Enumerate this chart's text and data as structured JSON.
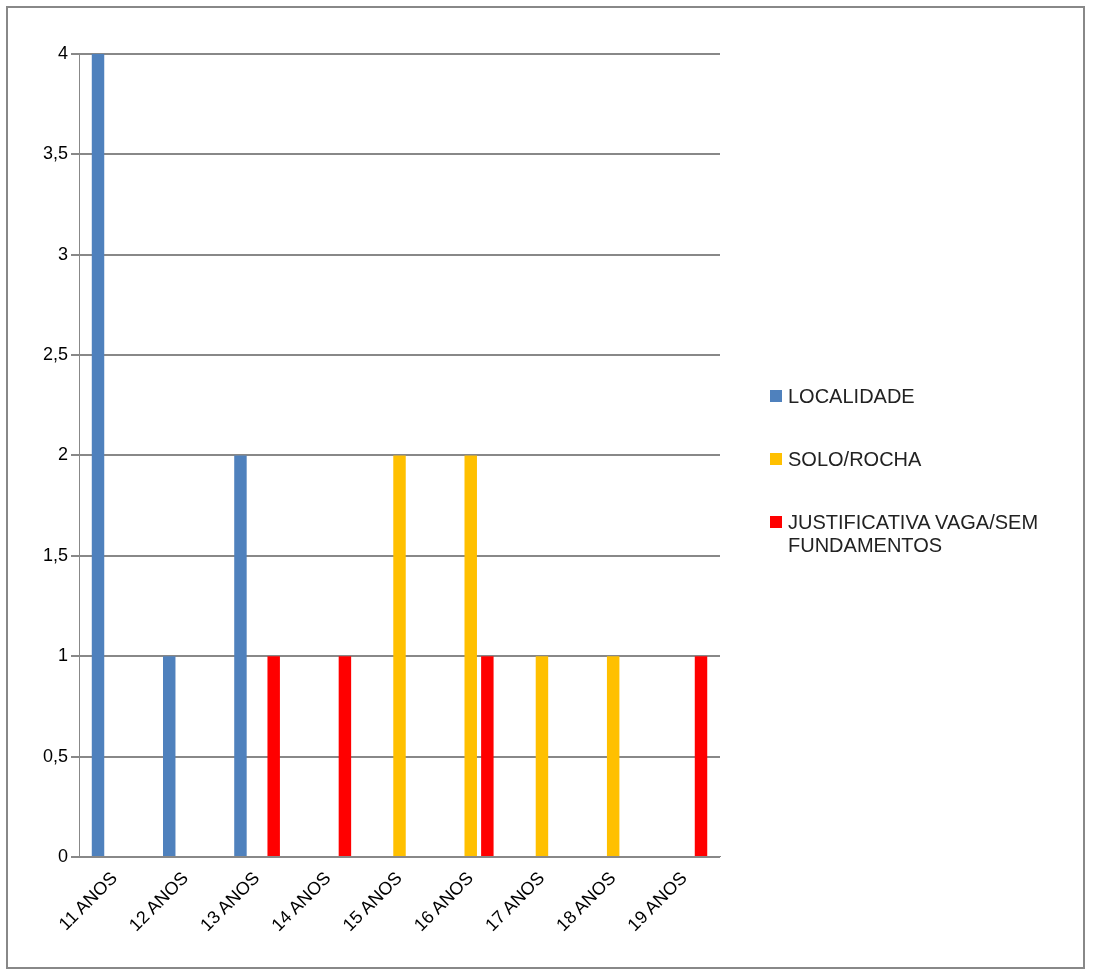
{
  "chart_data": {
    "type": "bar",
    "categories": [
      "11 ANOS",
      "12 ANOS",
      "13 ANOS",
      "14 ANOS",
      "15 ANOS",
      "16 ANOS",
      "17 ANOS",
      "18 ANOS",
      "19 ANOS"
    ],
    "series": [
      {
        "name": "LOCALIDADE",
        "color": "#4f81bd",
        "values": [
          4,
          1,
          2,
          0,
          0,
          0,
          0,
          0,
          0
        ]
      },
      {
        "name": "SOLO/ROCHA",
        "color": "#ffc000",
        "values": [
          0,
          0,
          0,
          0,
          2,
          2,
          1,
          1,
          0
        ]
      },
      {
        "name": "JUSTIFICATIVA VAGA/SEM FUNDAMENTOS",
        "color": "#ff0000",
        "values": [
          0,
          0,
          1,
          1,
          0,
          1,
          0,
          0,
          1
        ]
      }
    ],
    "ylim": [
      0,
      4
    ],
    "yticks": [
      0,
      {
        "value": 0.5,
        "label": "0,5"
      },
      1,
      {
        "value": 1.5,
        "label": "1,5"
      },
      2,
      {
        "value": 2.5,
        "label": "2,5"
      },
      3,
      {
        "value": 3.5,
        "label": "3,5"
      },
      4
    ],
    "grid": "y",
    "legend": "right"
  }
}
